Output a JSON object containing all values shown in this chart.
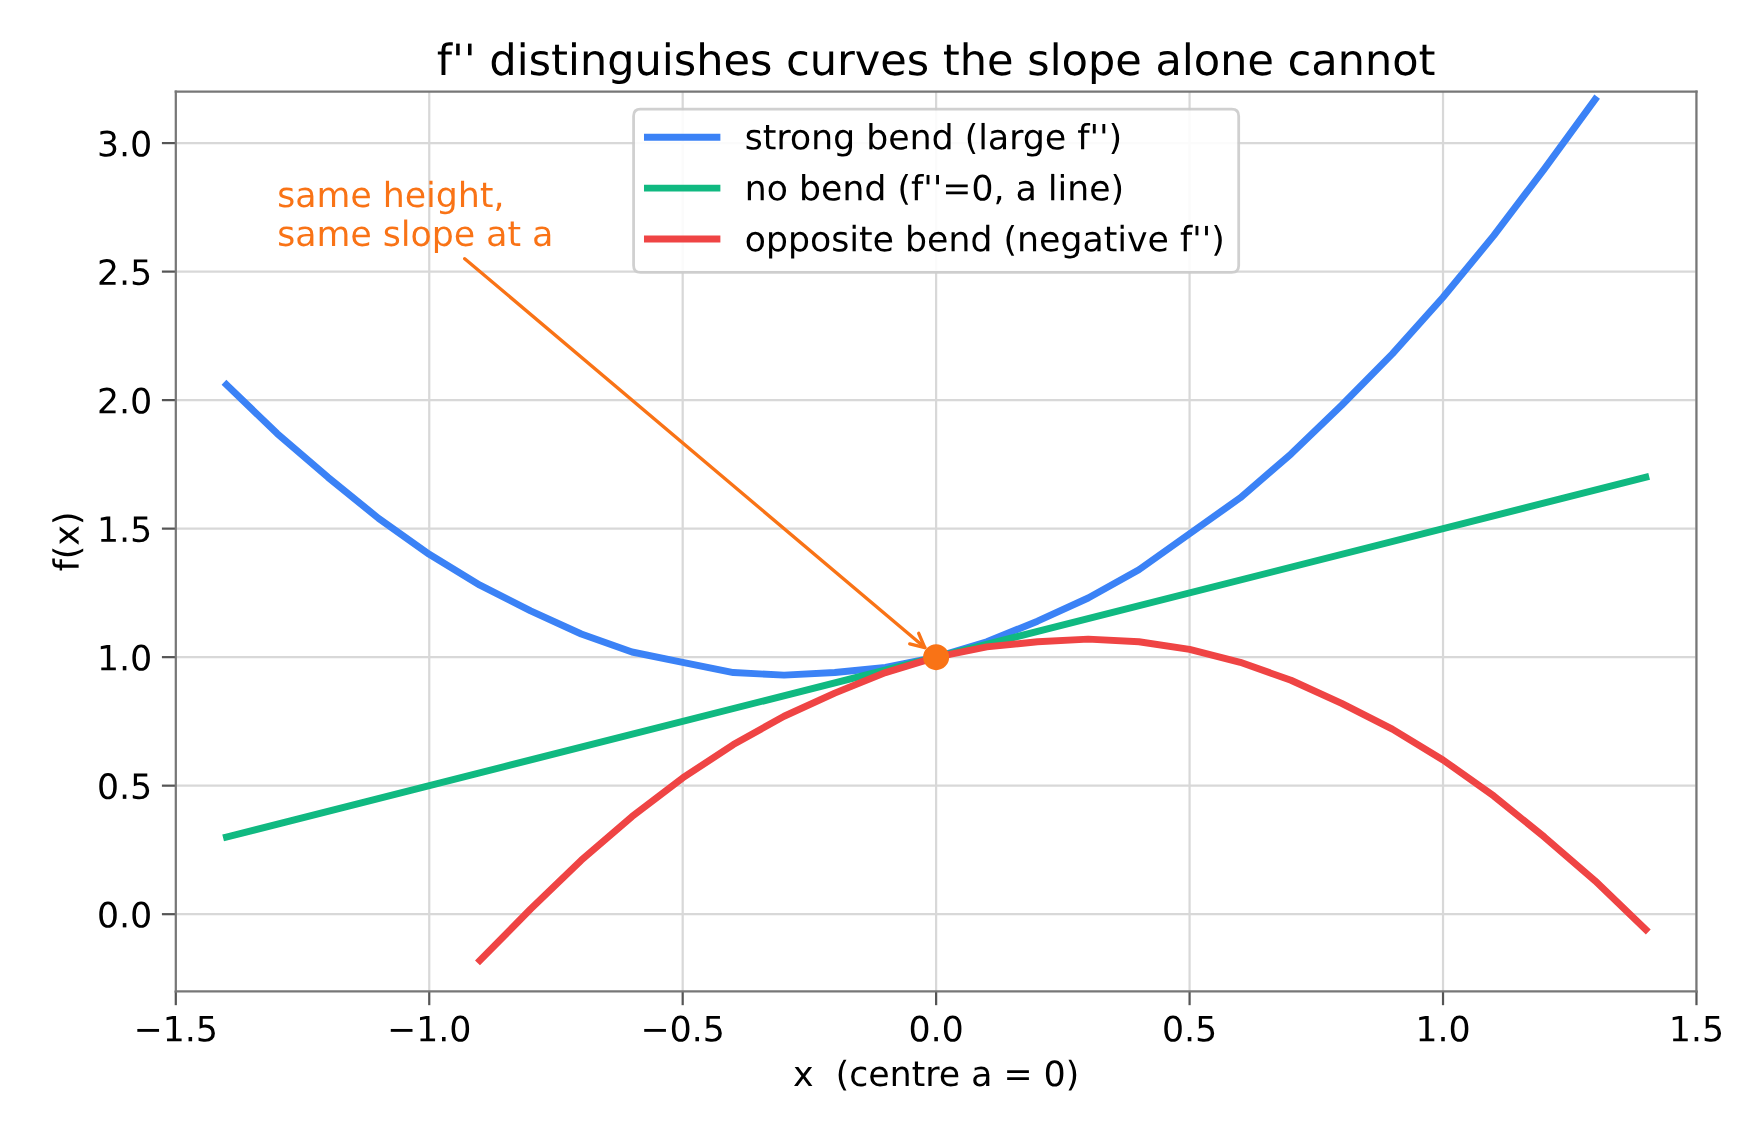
{
  "chart_data": {
    "type": "line",
    "title": "f'' distinguishes curves the slope alone cannot",
    "xlabel": "x  (centre a = 0)",
    "ylabel": "f(x)",
    "xlim": [
      -1.5,
      1.5
    ],
    "xticks": [
      {
        "value": -1.5,
        "label": "−1.5"
      },
      {
        "value": -1.0,
        "label": "−1.0"
      },
      {
        "value": -0.5,
        "label": "−0.5"
      },
      {
        "value": 0.0,
        "label": "0.0"
      },
      {
        "value": 0.5,
        "label": "0.5"
      },
      {
        "value": 1.0,
        "label": "1.0"
      },
      {
        "value": 1.5,
        "label": "1.5"
      }
    ],
    "ylim": [
      -0.3,
      3.2
    ],
    "yticks": [
      {
        "value": 0.0,
        "label": "0.0"
      },
      {
        "value": 0.5,
        "label": "0.5"
      },
      {
        "value": 1.0,
        "label": "1.0"
      },
      {
        "value": 1.5,
        "label": "1.5"
      },
      {
        "value": 2.0,
        "label": "2.0"
      },
      {
        "value": 2.5,
        "label": "2.5"
      },
      {
        "value": 3.0,
        "label": "3.0"
      }
    ],
    "grid": true,
    "legend": "top",
    "marker": "none",
    "line_style": "solid",
    "series": [
      {
        "name": "strong bend (large f'')",
        "color": "#3b82f6",
        "x": [
          -1.4,
          -1.3,
          -1.2,
          -1.1,
          -1.0,
          -0.9,
          -0.8,
          -0.7,
          -0.6,
          -0.5,
          -0.4,
          -0.3,
          -0.2,
          -0.1,
          0.0,
          0.1,
          0.2,
          0.3,
          0.4,
          0.5,
          0.6,
          0.7,
          0.8,
          0.9,
          1.0,
          1.1,
          1.2,
          1.3
        ],
        "values": [
          2.06,
          1.87,
          1.7,
          1.54,
          1.4,
          1.28,
          1.18,
          1.09,
          1.02,
          0.98,
          0.94,
          0.93,
          0.94,
          0.96,
          1.0,
          1.06,
          1.14,
          1.23,
          1.34,
          1.48,
          1.62,
          1.79,
          1.98,
          2.18,
          2.4,
          2.64,
          2.9,
          3.17
        ]
      },
      {
        "name": "no bend (f''=0, a line)",
        "color": "#10b981",
        "x": [
          -1.4,
          1.4
        ],
        "values": [
          0.3,
          1.7
        ]
      },
      {
        "name": "opposite bend (negative f'')",
        "color": "#ef4444",
        "x": [
          -0.9,
          -0.8,
          -0.7,
          -0.6,
          -0.5,
          -0.4,
          -0.3,
          -0.2,
          -0.1,
          0.0,
          0.1,
          0.2,
          0.3,
          0.4,
          0.5,
          0.6,
          0.7,
          0.8,
          0.9,
          1.0,
          1.1,
          1.2,
          1.3,
          1.4
        ],
        "values": [
          -0.18,
          0.02,
          0.21,
          0.38,
          0.53,
          0.66,
          0.77,
          0.86,
          0.94,
          1.0,
          1.04,
          1.06,
          1.07,
          1.06,
          1.03,
          0.98,
          0.91,
          0.82,
          0.72,
          0.6,
          0.46,
          0.3,
          0.13,
          -0.06
        ]
      },
      {
        "type": "scatter",
        "color": "#f97316",
        "x": [
          0.0
        ],
        "values": [
          1.0
        ],
        "marker": "circle"
      }
    ],
    "annotations": [
      {
        "text": "same height,\nsame slope at a",
        "x": 0.0,
        "y": 1.0
      }
    ]
  }
}
